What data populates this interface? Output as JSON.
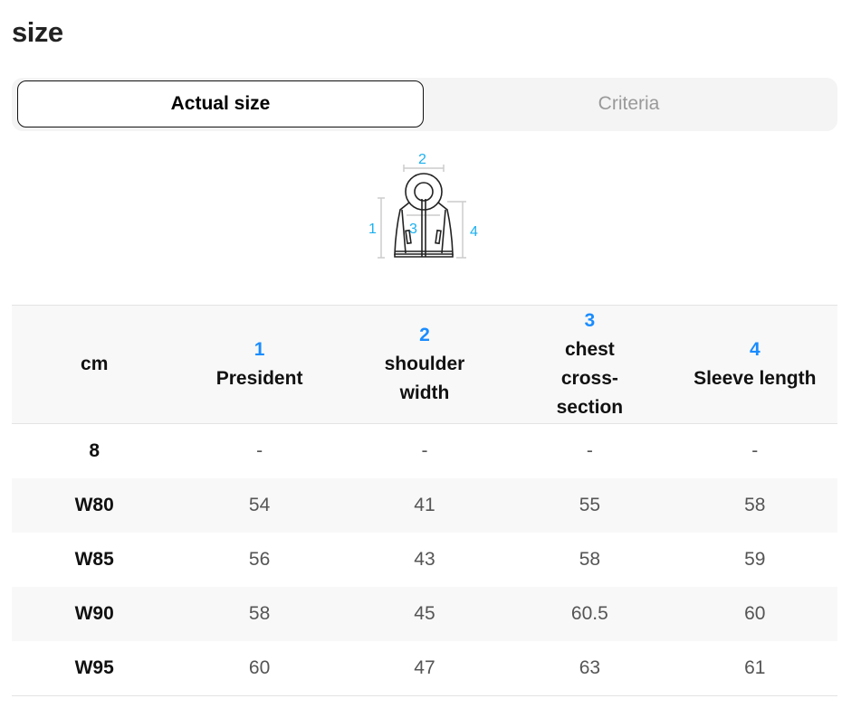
{
  "title": "size",
  "tabs": [
    {
      "label": "Actual size",
      "active": true
    },
    {
      "label": "Criteria",
      "active": false
    }
  ],
  "diagram": {
    "icon": "hooded-jacket-measurement-icon",
    "labels": [
      "1",
      "2",
      "3",
      "4"
    ],
    "label_color": "#1ab0f0"
  },
  "accent_color": "#1a8cff",
  "table": {
    "unit": "cm",
    "columns": [
      {
        "num": "1",
        "label": "President"
      },
      {
        "num": "2",
        "label": "shoulder width"
      },
      {
        "num": "3",
        "label": "chest cross-section"
      },
      {
        "num": "4",
        "label": "Sleeve length"
      }
    ],
    "rows": [
      {
        "size": "8",
        "values": [
          "-",
          "-",
          "-",
          "-"
        ]
      },
      {
        "size": "W80",
        "values": [
          "54",
          "41",
          "55",
          "58"
        ]
      },
      {
        "size": "W85",
        "values": [
          "56",
          "43",
          "58",
          "59"
        ]
      },
      {
        "size": "W90",
        "values": [
          "58",
          "45",
          "60.5",
          "60"
        ]
      },
      {
        "size": "W95",
        "values": [
          "60",
          "47",
          "63",
          "61"
        ]
      }
    ]
  }
}
